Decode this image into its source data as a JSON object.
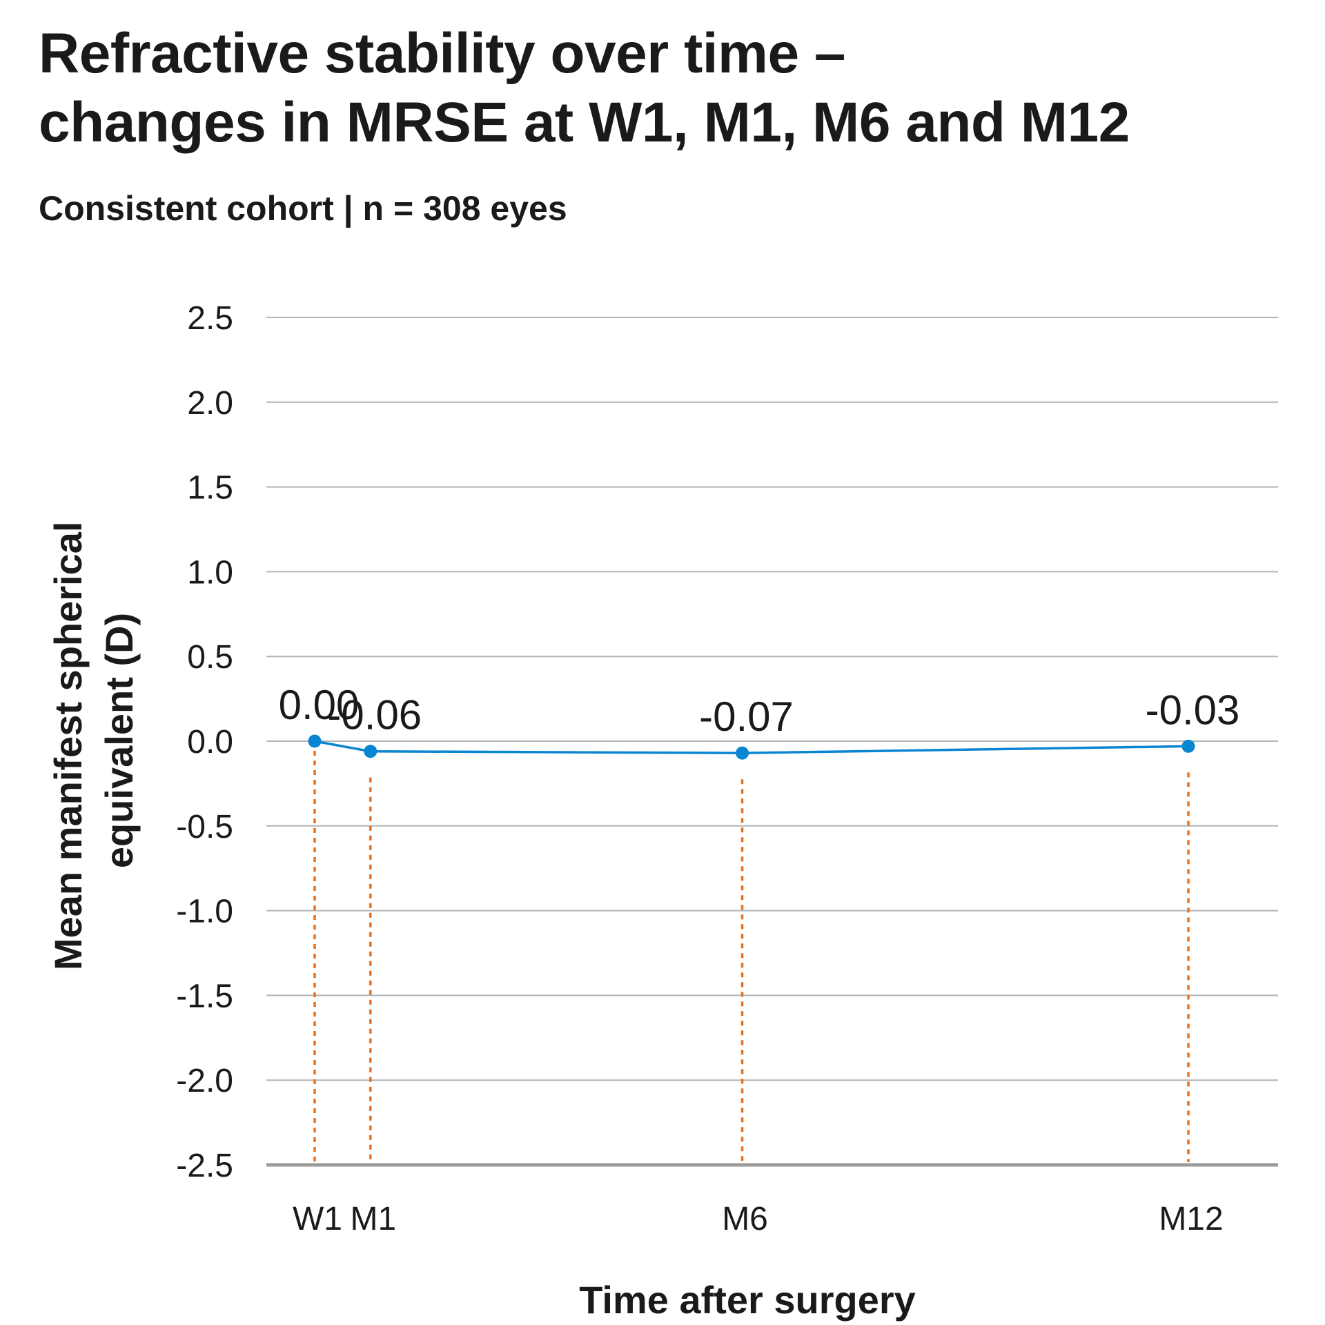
{
  "header": {
    "title_line1": "Refractive stability over time –",
    "title_line2": "changes in MRSE at W1, M1, M6 and M12",
    "subtitle": "Consistent cohort | n = 308 eyes"
  },
  "colors": {
    "series": "#0a85d1",
    "guide": "#e8711a",
    "grid": "#b3b3b3",
    "baseline": "#9a9a9a",
    "text": "#1a1a1a"
  },
  "chart_data": {
    "type": "line",
    "title": "Refractive stability over time – changes in MRSE at W1, M1, M6 and M12",
    "subtitle": "Consistent cohort | n = 308 eyes",
    "xlabel": "Time after surgery",
    "ylabel_lines": [
      "Mean manifest spherical",
      "equivalent (D)"
    ],
    "x_unit": "months",
    "x": [
      0.25,
      1,
      6,
      12
    ],
    "categories": [
      "W1",
      "M1",
      "M6",
      "M12"
    ],
    "values": [
      0.0,
      -0.06,
      -0.07,
      -0.03
    ],
    "data_labels": [
      "0.00",
      "-0.06",
      "-0.07",
      "-0.03"
    ],
    "ylim": [
      -2.5,
      2.5
    ],
    "yticks": [
      2.5,
      2.0,
      1.5,
      1.0,
      0.5,
      0.0,
      -0.5,
      -1.0,
      -1.5,
      -2.0,
      -2.5
    ],
    "ytick_labels": [
      "2.5",
      "2.0",
      "1.5",
      "1.0",
      "0.5",
      "0.0",
      "-0.5",
      "-1.0",
      "-1.5",
      "-2.0",
      "-2.5"
    ],
    "grid": true,
    "drop_lines": true,
    "legend": "none"
  }
}
